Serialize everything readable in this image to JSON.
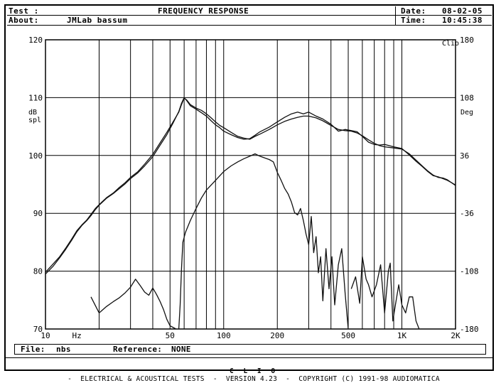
{
  "header": {
    "test_label": "Test :",
    "title": "FREQUENCY RESPONSE",
    "date_label": "Date:",
    "date_value": "08-02-05",
    "about_label": "About:",
    "about_value": "JMLab bassum",
    "time_label": "Time:",
    "time_value": "10:45:38"
  },
  "footer": {
    "file_label": "File:",
    "file_value": "nbs",
    "reference_label": "Reference:",
    "reference_value": "NONE"
  },
  "status_bar": {
    "brand": "C L I O",
    "text": "-  ELECTRICAL & ACOUSTICAL TESTS  -  VERSION 4.23  -  COPYRIGHT (C) 1991-98 AUDIOMATICA"
  },
  "chart_data": {
    "type": "line",
    "corner_label": "Clio",
    "xscale": "log",
    "xlim": [
      10,
      2000
    ],
    "x_tick_labels": [
      {
        "x": 10,
        "label": "10"
      },
      {
        "x": 15,
        "label": "Hz"
      },
      {
        "x": 50,
        "label": "50"
      },
      {
        "x": 100,
        "label": "100"
      },
      {
        "x": 200,
        "label": "200"
      },
      {
        "x": 500,
        "label": "500"
      },
      {
        "x": 1000,
        "label": "1K"
      },
      {
        "x": 2000,
        "label": "2K"
      }
    ],
    "x_gridlines": [
      10,
      20,
      30,
      40,
      50,
      60,
      70,
      80,
      90,
      100,
      200,
      300,
      400,
      500,
      600,
      700,
      800,
      900,
      1000,
      2000
    ],
    "y_left": {
      "label_top": "dB",
      "label_bottom": "spl",
      "ylim": [
        70,
        120
      ],
      "ticks": [
        70,
        80,
        90,
        100,
        110,
        120
      ]
    },
    "y_right": {
      "label": "Deg",
      "ylim": [
        -180,
        180
      ],
      "ticks": [
        -180,
        -108,
        -36,
        36,
        108,
        180
      ]
    },
    "grid": true,
    "series": [
      {
        "axis": "left",
        "values": [
          [
            10,
            79.8
          ],
          [
            11,
            81.2
          ],
          [
            12,
            82.5
          ],
          [
            13,
            84
          ],
          [
            14,
            85.5
          ],
          [
            15,
            87
          ],
          [
            16,
            88
          ],
          [
            17,
            88.8
          ],
          [
            18,
            89.8
          ],
          [
            19,
            90.8
          ],
          [
            20,
            91.5
          ],
          [
            22,
            92.7
          ],
          [
            24,
            93.5
          ],
          [
            26,
            94.5
          ],
          [
            28,
            95.3
          ],
          [
            30,
            96.2
          ],
          [
            33,
            97.2
          ],
          [
            36,
            98.5
          ],
          [
            40,
            100.2
          ],
          [
            44,
            102.2
          ],
          [
            48,
            104
          ],
          [
            52,
            105.8
          ],
          [
            56,
            107.5
          ],
          [
            58,
            108.8
          ],
          [
            60,
            109.9
          ],
          [
            62,
            109.6
          ],
          [
            65,
            108.8
          ],
          [
            70,
            108.2
          ],
          [
            75,
            107.8
          ],
          [
            80,
            107.2
          ],
          [
            85,
            106.5
          ],
          [
            90,
            105.8
          ],
          [
            95,
            105.2
          ],
          [
            100,
            104.8
          ],
          [
            110,
            104
          ],
          [
            120,
            103.3
          ],
          [
            130,
            103
          ],
          [
            140,
            102.8
          ],
          [
            150,
            103.3
          ],
          [
            160,
            103.7
          ],
          [
            180,
            104.5
          ],
          [
            200,
            105.3
          ],
          [
            220,
            105.9
          ],
          [
            240,
            106.3
          ],
          [
            260,
            106.6
          ],
          [
            280,
            106.8
          ],
          [
            300,
            106.8
          ],
          [
            330,
            106.5
          ],
          [
            360,
            106
          ],
          [
            400,
            105.2
          ],
          [
            440,
            104.5
          ],
          [
            480,
            104.3
          ],
          [
            520,
            104.2
          ],
          [
            560,
            103.9
          ],
          [
            600,
            103.4
          ],
          [
            650,
            102.7
          ],
          [
            700,
            102.1
          ],
          [
            750,
            101.7
          ],
          [
            800,
            101.5
          ],
          [
            900,
            101.3
          ],
          [
            1000,
            101.1
          ],
          [
            1100,
            100.3
          ],
          [
            1200,
            99.2
          ],
          [
            1300,
            98.2
          ],
          [
            1400,
            97.3
          ],
          [
            1500,
            96.6
          ],
          [
            1600,
            96.2
          ],
          [
            1700,
            96.1
          ],
          [
            1800,
            95.8
          ],
          [
            1900,
            95.3
          ],
          [
            2000,
            94.8
          ]
        ]
      },
      {
        "axis": "left",
        "values": [
          [
            10,
            79.5
          ],
          [
            11,
            80.8
          ],
          [
            12,
            82.3
          ],
          [
            13,
            83.8
          ],
          [
            14,
            85.3
          ],
          [
            15,
            86.8
          ],
          [
            16,
            87.9
          ],
          [
            17,
            88.7
          ],
          [
            18,
            89.6
          ],
          [
            19,
            90.6
          ],
          [
            20,
            91.4
          ],
          [
            22,
            92.6
          ],
          [
            24,
            93.4
          ],
          [
            26,
            94.3
          ],
          [
            28,
            95.1
          ],
          [
            30,
            96
          ],
          [
            33,
            97
          ],
          [
            36,
            98.2
          ],
          [
            40,
            99.8
          ],
          [
            44,
            101.8
          ],
          [
            48,
            103.6
          ],
          [
            52,
            105.6
          ],
          [
            56,
            107.6
          ],
          [
            58,
            109
          ],
          [
            60,
            110
          ],
          [
            62,
            109.5
          ],
          [
            65,
            108.6
          ],
          [
            70,
            108
          ],
          [
            75,
            107.4
          ],
          [
            80,
            106.8
          ],
          [
            85,
            106
          ],
          [
            90,
            105.3
          ],
          [
            95,
            104.8
          ],
          [
            100,
            104.2
          ],
          [
            110,
            103.6
          ],
          [
            120,
            103.1
          ],
          [
            130,
            102.8
          ],
          [
            140,
            102.9
          ],
          [
            150,
            103.5
          ],
          [
            160,
            104.1
          ],
          [
            180,
            104.9
          ],
          [
            200,
            105.8
          ],
          [
            220,
            106.6
          ],
          [
            240,
            107.2
          ],
          [
            260,
            107.5
          ],
          [
            280,
            107.2
          ],
          [
            300,
            107.5
          ],
          [
            330,
            106.8
          ],
          [
            360,
            106.3
          ],
          [
            400,
            105.4
          ],
          [
            440,
            104.2
          ],
          [
            480,
            104.5
          ],
          [
            520,
            104.3
          ],
          [
            560,
            104.1
          ],
          [
            600,
            103.3
          ],
          [
            650,
            102.3
          ],
          [
            700,
            101.9
          ],
          [
            750,
            101.8
          ],
          [
            800,
            101.9
          ],
          [
            900,
            101.5
          ],
          [
            1000,
            101.2
          ],
          [
            1100,
            100.1
          ],
          [
            1200,
            99
          ],
          [
            1300,
            98.1
          ],
          [
            1400,
            97.2
          ],
          [
            1500,
            96.5
          ],
          [
            1600,
            96.3
          ],
          [
            1700,
            96
          ],
          [
            1800,
            95.7
          ],
          [
            1900,
            95.3
          ],
          [
            2000,
            94.9
          ]
        ]
      },
      {
        "axis": "right",
        "values": [
          [
            18,
            -140
          ],
          [
            20,
            -160
          ],
          [
            22,
            -152
          ],
          [
            24,
            -146
          ],
          [
            26,
            -141
          ],
          [
            28,
            -135
          ],
          [
            30,
            -128
          ],
          [
            32,
            -118
          ],
          [
            34,
            -126
          ],
          [
            36,
            -134
          ],
          [
            38,
            -138
          ],
          [
            40,
            -129
          ],
          [
            42,
            -137
          ],
          [
            44,
            -146
          ],
          [
            46,
            -156
          ],
          [
            48,
            -168
          ],
          [
            50,
            -176
          ],
          [
            54,
            -180
          ]
        ]
      },
      {
        "axis": "right",
        "values": [
          [
            56,
            -180
          ],
          [
            57,
            -150
          ],
          [
            58,
            -105
          ],
          [
            59,
            -72
          ],
          [
            61,
            -60
          ],
          [
            65,
            -45
          ],
          [
            70,
            -30
          ],
          [
            75,
            -17
          ],
          [
            80,
            -7
          ],
          [
            90,
            5
          ],
          [
            100,
            16
          ],
          [
            110,
            23
          ],
          [
            120,
            28
          ],
          [
            130,
            32
          ],
          [
            140,
            35
          ],
          [
            150,
            38
          ],
          [
            160,
            35
          ],
          [
            170,
            33
          ],
          [
            180,
            31
          ],
          [
            190,
            28
          ],
          [
            200,
            15
          ],
          [
            210,
            5
          ],
          [
            220,
            -5
          ],
          [
            230,
            -12
          ],
          [
            240,
            -22
          ],
          [
            250,
            -35
          ],
          [
            260,
            -38
          ],
          [
            270,
            -30
          ],
          [
            280,
            -45
          ],
          [
            290,
            -62
          ],
          [
            300,
            -75
          ],
          [
            310,
            -40
          ],
          [
            320,
            -85
          ],
          [
            330,
            -65
          ],
          [
            340,
            -110
          ],
          [
            350,
            -90
          ],
          [
            360,
            -145
          ],
          [
            375,
            -80
          ],
          [
            390,
            -130
          ],
          [
            405,
            -90
          ],
          [
            420,
            -150
          ],
          [
            440,
            -100
          ],
          [
            460,
            -80
          ],
          [
            480,
            -135
          ],
          [
            500,
            -180
          ]
        ]
      },
      {
        "axis": "right",
        "values": [
          [
            520,
            -130
          ],
          [
            550,
            -115
          ],
          [
            580,
            -148
          ],
          [
            600,
            -90
          ],
          [
            630,
            -118
          ],
          [
            650,
            -125
          ],
          [
            680,
            -140
          ],
          [
            720,
            -125
          ],
          [
            760,
            -100
          ],
          [
            800,
            -160
          ],
          [
            840,
            -108
          ],
          [
            860,
            -98
          ],
          [
            890,
            -170
          ],
          [
            920,
            -150
          ],
          [
            960,
            -125
          ],
          [
            1000,
            -150
          ],
          [
            1050,
            -160
          ],
          [
            1100,
            -140
          ],
          [
            1150,
            -140
          ],
          [
            1200,
            -170
          ],
          [
            1250,
            -180
          ]
        ]
      }
    ]
  }
}
